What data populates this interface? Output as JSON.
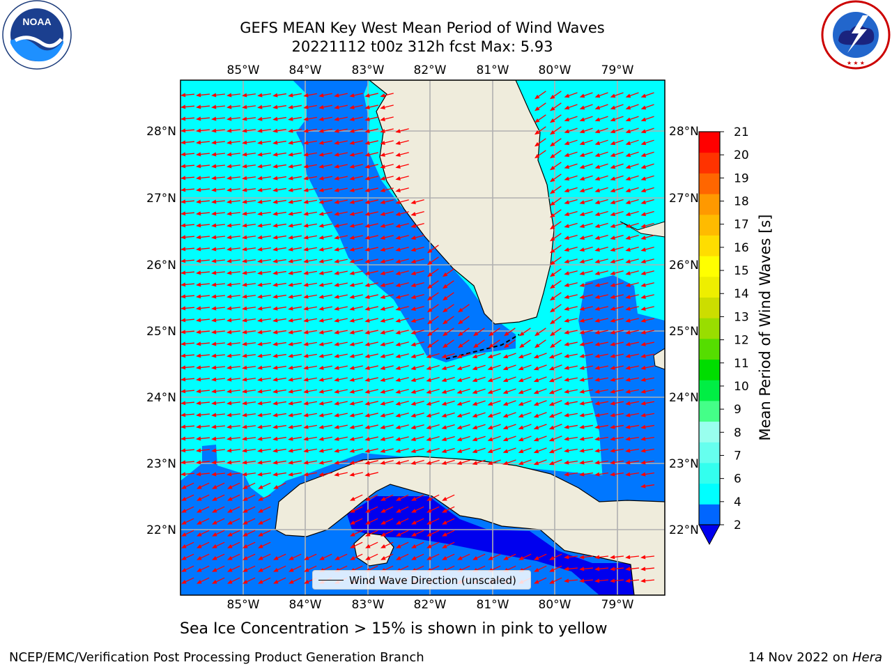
{
  "header": {
    "title_line1": "GEFS MEAN Key West Mean Period of Wind Waves",
    "title_line2": "20221112 t00z 312h fcst   Max: 5.93"
  },
  "logos": {
    "left": {
      "name": "noaa-logo",
      "text": "NOAA",
      "ring_text": "NATIONAL OCEANIC AND ATMOSPHERIC ADMINISTRATION · U.S. DEPARTMENT OF COMMERCE"
    },
    "right": {
      "name": "nws-logo",
      "ring_text": "NATIONAL WEATHER SERVICE"
    }
  },
  "axes": {
    "lon_labels": [
      "85°W",
      "84°W",
      "83°W",
      "82°W",
      "81°W",
      "80°W",
      "79°W"
    ],
    "lat_labels": [
      "28°N",
      "27°N",
      "26°N",
      "25°N",
      "24°N",
      "23°N",
      "22°N"
    ]
  },
  "colorbar": {
    "label": "Mean Period of Wind Waves [s]",
    "ticks": [
      "2",
      "4",
      "6",
      "7",
      "8",
      "9",
      "10",
      "11",
      "12",
      "13",
      "14",
      "15",
      "16",
      "17",
      "18",
      "19",
      "20",
      "21"
    ],
    "colors": [
      "#0066ff",
      "#00ffff",
      "#33ffee",
      "#66ffee",
      "#99ffee",
      "#44ff88",
      "#00ee44",
      "#00dd00",
      "#55dd00",
      "#99dd00",
      "#ccdd00",
      "#eeee00",
      "#ffff00",
      "#ffdd00",
      "#ffbb00",
      "#ff9900",
      "#ff6600",
      "#ff3300",
      "#ff0000"
    ],
    "under_color": "#0000ee"
  },
  "legend": {
    "label": "Wind Wave Direction (unscaled)"
  },
  "note": "Sea Ice Concentration > 15% is shown in pink to yellow",
  "footer": {
    "left": "NCEP/EMC/Verification Post Processing Product Generation Branch",
    "right_date": "14 Nov 2022 on ",
    "right_host": "Hera"
  },
  "colors": {
    "land": "#efecdc",
    "sea_4_6": "#00ffff",
    "sea_2_4": "#0077ff",
    "sea_lt2": "#0000ee",
    "arrow": "#ff0000",
    "grid": "#b0b0b0"
  }
}
